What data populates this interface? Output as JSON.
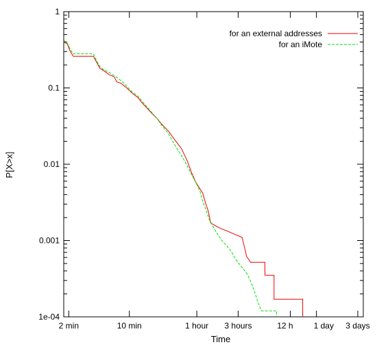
{
  "chart_data": {
    "type": "line",
    "xlabel": "Time",
    "ylabel": "P[X>x]",
    "x_scale": "log",
    "y_scale": "log",
    "xlim_seconds": [
      105,
      300000
    ],
    "ylim": [
      0.0001,
      1
    ],
    "grid": false,
    "legend_position": "top-right",
    "x_ticks": [
      {
        "seconds": 120,
        "label": "2 min"
      },
      {
        "seconds": 600,
        "label": "10 min"
      },
      {
        "seconds": 3600,
        "label": "1 hour"
      },
      {
        "seconds": 10800,
        "label": "3 hours"
      },
      {
        "seconds": 43200,
        "label": "12 h"
      },
      {
        "seconds": 86400,
        "label": "1 day"
      },
      {
        "seconds": 259200,
        "label": "3 days"
      }
    ],
    "y_ticks": [
      {
        "value": 1,
        "label": "1"
      },
      {
        "value": 0.1,
        "label": "0.1"
      },
      {
        "value": 0.01,
        "label": "0.01"
      },
      {
        "value": 0.001,
        "label": "0.001"
      },
      {
        "value": 0.0001,
        "label": "1e-04"
      }
    ],
    "series": [
      {
        "name": "for an external addresses",
        "color": "#ee0000",
        "dash": "solid",
        "points_seconds": [
          [
            105,
            0.4
          ],
          [
            115,
            0.38
          ],
          [
            125,
            0.3
          ],
          [
            135,
            0.26
          ],
          [
            230,
            0.26
          ],
          [
            250,
            0.22
          ],
          [
            275,
            0.18
          ],
          [
            300,
            0.17
          ],
          [
            350,
            0.15
          ],
          [
            400,
            0.14
          ],
          [
            430,
            0.12
          ],
          [
            480,
            0.115
          ],
          [
            560,
            0.1
          ],
          [
            650,
            0.085
          ],
          [
            750,
            0.075
          ],
          [
            850,
            0.063
          ],
          [
            950,
            0.055
          ],
          [
            1100,
            0.046
          ],
          [
            1250,
            0.04
          ],
          [
            1400,
            0.034
          ],
          [
            1700,
            0.027
          ],
          [
            2000,
            0.021
          ],
          [
            2400,
            0.016
          ],
          [
            2800,
            0.011
          ],
          [
            3100,
            0.008
          ],
          [
            3500,
            0.0058
          ],
          [
            3900,
            0.0048
          ],
          [
            4200,
            0.0042
          ],
          [
            4500,
            0.0032
          ],
          [
            4900,
            0.0024
          ],
          [
            5200,
            0.0017
          ],
          [
            5700,
            0.0016
          ],
          [
            6300,
            0.0015
          ],
          [
            7200,
            0.0014
          ],
          [
            8500,
            0.0013
          ],
          [
            10000,
            0.0012
          ],
          [
            12000,
            0.0011
          ],
          [
            13000,
            0.00075
          ],
          [
            13500,
            0.00062
          ],
          [
            15000,
            0.00052
          ],
          [
            22000,
            0.00052
          ],
          [
            22000,
            0.00035
          ],
          [
            28000,
            0.00035
          ],
          [
            28000,
            0.00017
          ],
          [
            60000,
            0.00017
          ],
          [
            60000,
            0.0001
          ]
        ]
      },
      {
        "name": "for an iMote",
        "color": "#00dd00",
        "dash": "dashed",
        "points_seconds": [
          [
            105,
            0.42
          ],
          [
            115,
            0.39
          ],
          [
            125,
            0.32
          ],
          [
            135,
            0.28
          ],
          [
            230,
            0.28
          ],
          [
            250,
            0.23
          ],
          [
            275,
            0.19
          ],
          [
            300,
            0.175
          ],
          [
            350,
            0.16
          ],
          [
            400,
            0.145
          ],
          [
            440,
            0.135
          ],
          [
            500,
            0.12
          ],
          [
            560,
            0.105
          ],
          [
            650,
            0.088
          ],
          [
            750,
            0.078
          ],
          [
            850,
            0.066
          ],
          [
            950,
            0.057
          ],
          [
            1100,
            0.047
          ],
          [
            1250,
            0.04
          ],
          [
            1400,
            0.033
          ],
          [
            1700,
            0.025
          ],
          [
            2000,
            0.018
          ],
          [
            2400,
            0.013
          ],
          [
            2800,
            0.0095
          ],
          [
            3100,
            0.0075
          ],
          [
            3500,
            0.0058
          ],
          [
            3900,
            0.0045
          ],
          [
            4200,
            0.0033
          ],
          [
            4600,
            0.0025
          ],
          [
            5000,
            0.0019
          ],
          [
            6000,
            0.0013
          ],
          [
            7000,
            0.001
          ],
          [
            8000,
            0.00085
          ],
          [
            9000,
            0.00072
          ],
          [
            10000,
            0.00058
          ],
          [
            11000,
            0.0005
          ],
          [
            12500,
            0.00042
          ],
          [
            14000,
            0.00035
          ],
          [
            15500,
            0.00027
          ],
          [
            17000,
            0.0002
          ],
          [
            18500,
            0.00015
          ],
          [
            20000,
            0.00012
          ],
          [
            30000,
            0.00012
          ],
          [
            30000,
            0.0001
          ]
        ]
      }
    ]
  }
}
